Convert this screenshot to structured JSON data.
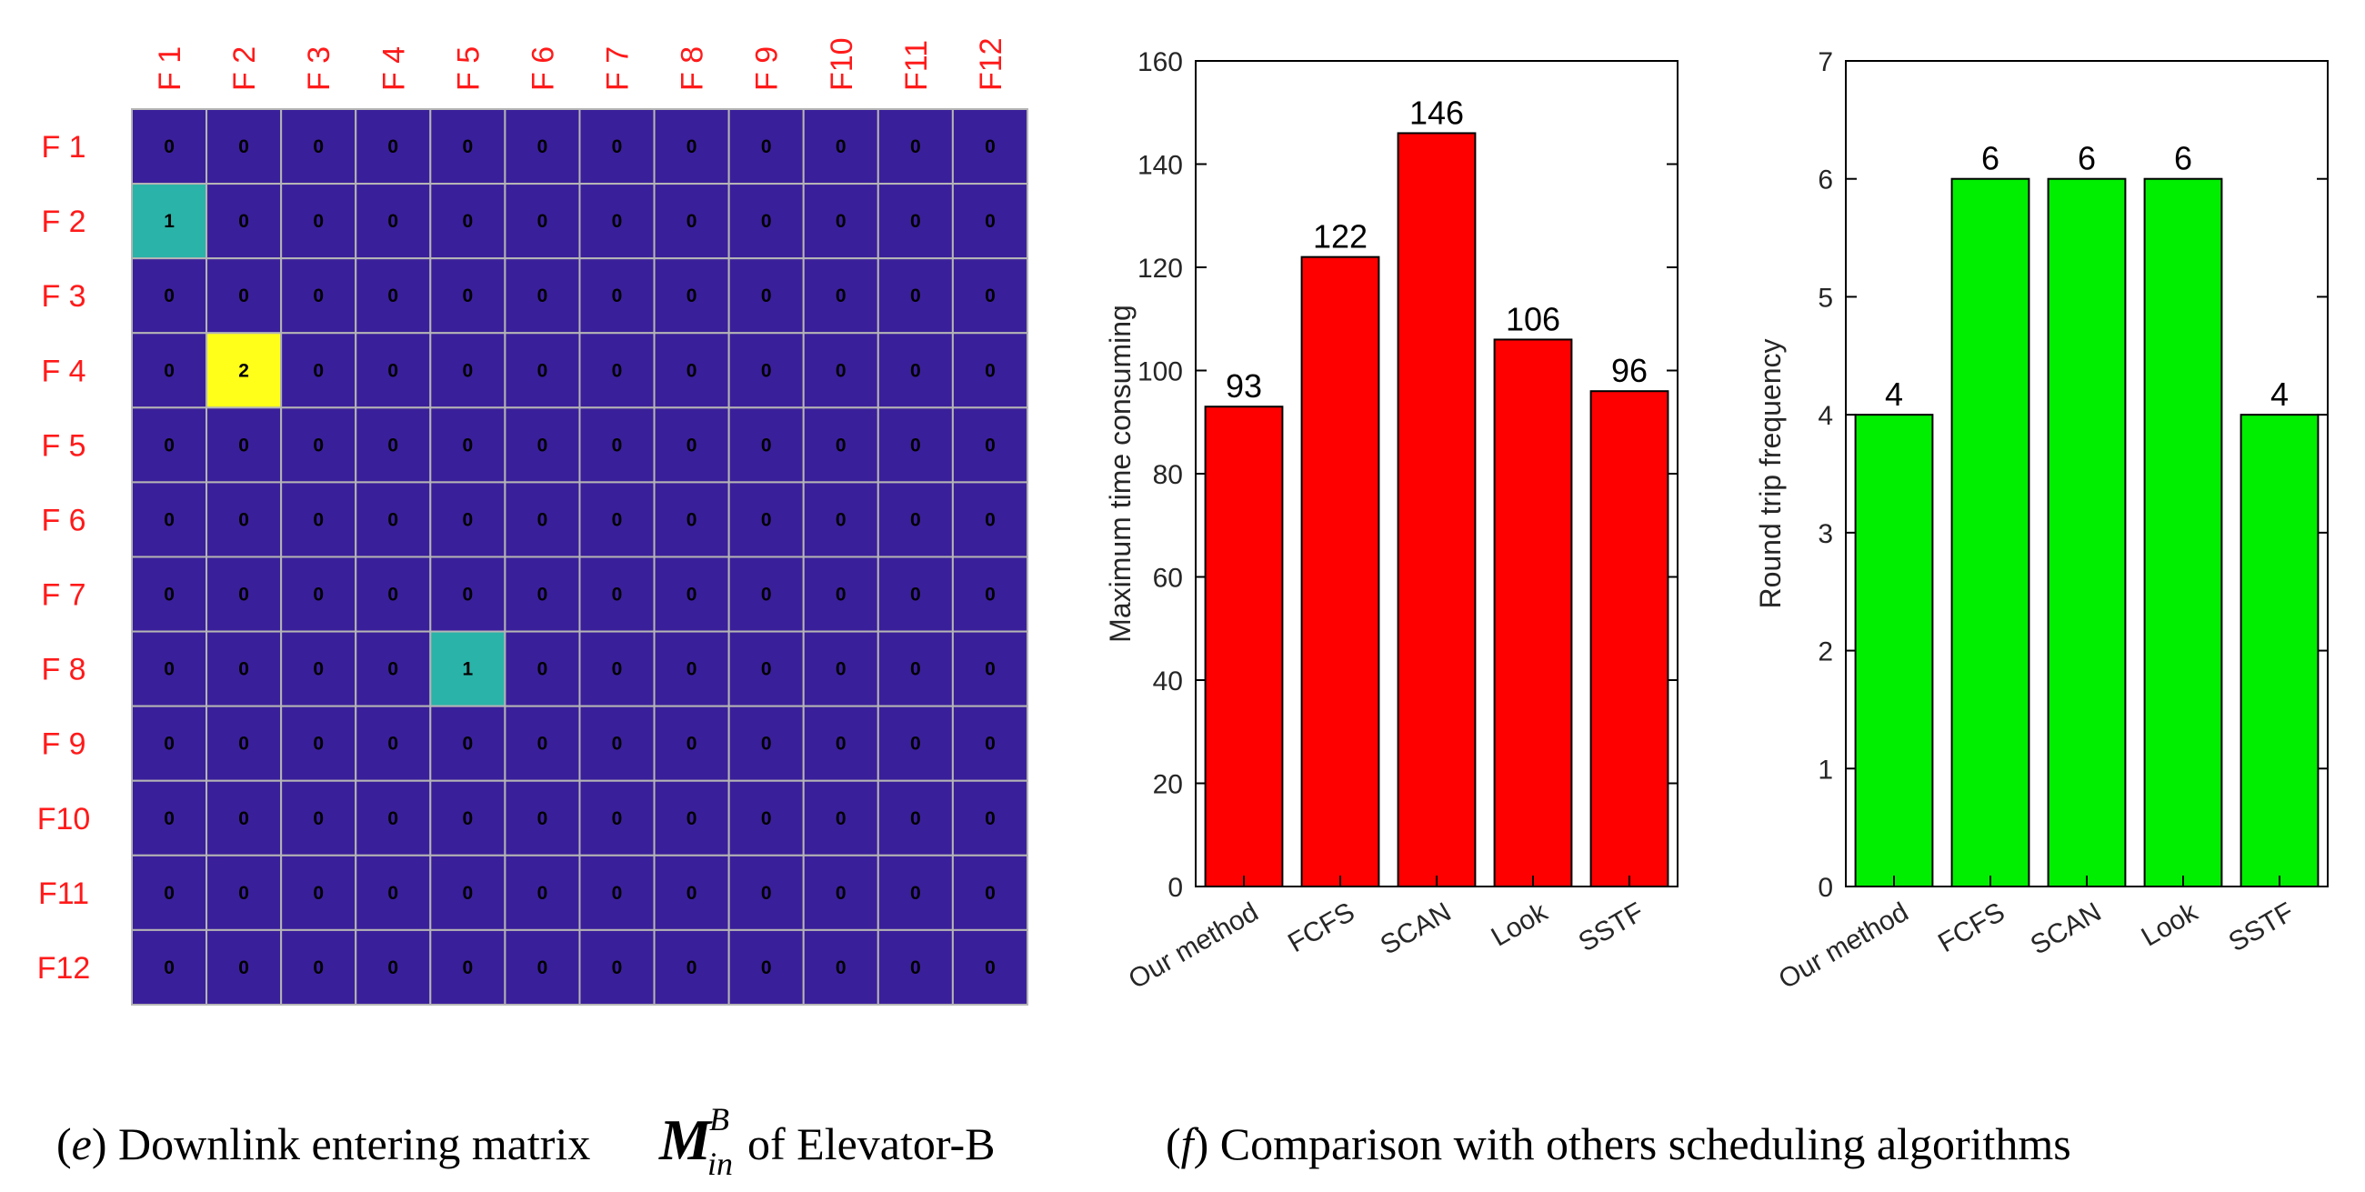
{
  "colors": {
    "background": "#3a1f9a",
    "grid_line": "#b5b5b5",
    "cell_value_1": "#2ab3a8",
    "cell_value_2": "#ffff1a",
    "floor_label": "#ff1a1a",
    "bar_time": "#ff0000",
    "bar_trips": "#00ee00"
  },
  "chart_data": [
    {
      "type": "heatmap",
      "title": "Downlink entering matrix of Elevator-B",
      "col_labels": [
        "F 1",
        "F 2",
        "F 3",
        "F 4",
        "F 5",
        "F 6",
        "F 7",
        "F 8",
        "F 9",
        "F10",
        "F11",
        "F12"
      ],
      "row_labels": [
        "F 1",
        "F 2",
        "F 3",
        "F 4",
        "F 5",
        "F 6",
        "F 7",
        "F 8",
        "F 9",
        "F10",
        "F11",
        "F12"
      ],
      "values": [
        [
          0,
          0,
          0,
          0,
          0,
          0,
          0,
          0,
          0,
          0,
          0,
          0
        ],
        [
          1,
          0,
          0,
          0,
          0,
          0,
          0,
          0,
          0,
          0,
          0,
          0
        ],
        [
          0,
          0,
          0,
          0,
          0,
          0,
          0,
          0,
          0,
          0,
          0,
          0
        ],
        [
          0,
          2,
          0,
          0,
          0,
          0,
          0,
          0,
          0,
          0,
          0,
          0
        ],
        [
          0,
          0,
          0,
          0,
          0,
          0,
          0,
          0,
          0,
          0,
          0,
          0
        ],
        [
          0,
          0,
          0,
          0,
          0,
          0,
          0,
          0,
          0,
          0,
          0,
          0
        ],
        [
          0,
          0,
          0,
          0,
          0,
          0,
          0,
          0,
          0,
          0,
          0,
          0
        ],
        [
          0,
          0,
          0,
          0,
          1,
          0,
          0,
          0,
          0,
          0,
          0,
          0
        ],
        [
          0,
          0,
          0,
          0,
          0,
          0,
          0,
          0,
          0,
          0,
          0,
          0
        ],
        [
          0,
          0,
          0,
          0,
          0,
          0,
          0,
          0,
          0,
          0,
          0,
          0
        ],
        [
          0,
          0,
          0,
          0,
          0,
          0,
          0,
          0,
          0,
          0,
          0,
          0
        ],
        [
          0,
          0,
          0,
          0,
          0,
          0,
          0,
          0,
          0,
          0,
          0,
          0
        ]
      ]
    },
    {
      "type": "bar",
      "categories": [
        "Our method",
        "FCFS",
        "SCAN",
        "Look",
        "SSTF"
      ],
      "values": [
        93,
        122,
        146,
        106,
        96
      ],
      "xlabel": "",
      "ylabel": "Maximum time consuming",
      "ylim": [
        0,
        160
      ],
      "yticks": [
        0,
        20,
        40,
        60,
        80,
        100,
        120,
        140,
        160
      ]
    },
    {
      "type": "bar",
      "categories": [
        "Our method",
        "FCFS",
        "SCAN",
        "Look",
        "SSTF"
      ],
      "values": [
        4,
        6,
        6,
        6,
        4
      ],
      "xlabel": "",
      "ylabel": "Round trip frequency",
      "ylim": [
        0,
        7
      ],
      "yticks": [
        0,
        1,
        2,
        3,
        4,
        5,
        6,
        7
      ]
    }
  ],
  "captions": {
    "e": {
      "tag": "e",
      "text_before": "Downlink entering matrix ",
      "symbol": "M",
      "subscript": "in",
      "superscript": "B",
      "text_after": "of Elevator-B"
    },
    "f": {
      "tag": "f",
      "text": "Comparison with others scheduling algorithms"
    }
  }
}
